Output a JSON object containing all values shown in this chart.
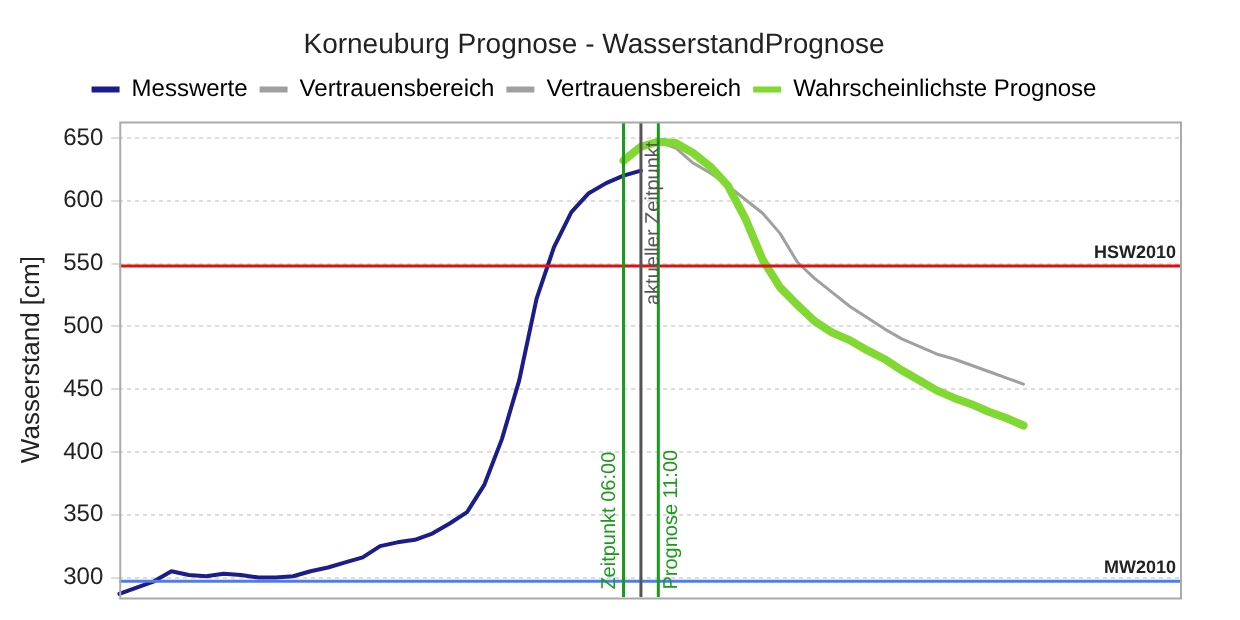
{
  "chart_data": {
    "type": "line",
    "title": "Korneuburg Prognose - WasserstandPrognose",
    "ylabel": "Wasserstand [cm]",
    "categories": [
      null,
      null,
      null,
      null,
      null,
      null,
      null,
      null,
      null,
      null,
      null,
      null,
      null,
      null,
      null,
      null,
      null,
      null,
      null,
      null,
      null,
      null,
      null,
      null,
      null,
      null,
      null,
      null,
      null,
      null,
      null,
      null,
      null,
      null,
      null,
      null,
      null,
      null,
      null,
      null,
      null,
      null,
      null,
      null,
      null,
      null,
      null,
      null,
      null,
      null,
      null,
      null,
      null,
      null,
      null,
      null,
      null,
      null,
      null,
      null,
      null,
      null
    ],
    "ylim": [
      284,
      663
    ],
    "yticks": [
      300,
      350,
      400,
      450,
      500,
      550,
      600,
      650
    ],
    "tick_labels": "y",
    "grid": "y",
    "legend": "top",
    "marker": "none",
    "line_style": "solid",
    "series": [
      {
        "name": "Messwerte",
        "color": "#1c1c8a",
        "values": [
          287,
          292,
          297,
          305,
          302,
          301,
          303,
          302,
          300,
          300,
          301,
          305,
          308,
          312,
          316,
          325,
          328,
          330,
          335,
          343,
          352,
          374,
          410,
          457,
          522,
          563,
          591,
          606,
          614,
          620,
          624,
          null,
          null,
          null,
          null,
          null,
          null,
          null,
          null,
          null,
          null,
          null,
          null,
          null,
          null,
          null,
          null,
          null,
          null,
          null,
          null,
          null,
          null,
          null,
          null,
          null,
          null,
          null,
          null,
          null,
          null,
          null
        ]
      },
      {
        "name": "Vertrauensbereich",
        "color": "#a0a0a0",
        "values": [
          null,
          null,
          null,
          null,
          null,
          null,
          null,
          null,
          null,
          null,
          null,
          null,
          null,
          null,
          null,
          null,
          null,
          null,
          null,
          null,
          null,
          null,
          null,
          null,
          null,
          null,
          null,
          null,
          null,
          null,
          643,
          647,
          642,
          630,
          622,
          612,
          601,
          590,
          574,
          551,
          538,
          527,
          516,
          507,
          498,
          490,
          484,
          478,
          474,
          469,
          464,
          459,
          454,
          null,
          null,
          null,
          null,
          null,
          null,
          null,
          null,
          null
        ]
      },
      {
        "name": "Vertrauensbereich",
        "color": "#a0a0a0",
        "values": [
          null,
          null,
          null,
          null,
          null,
          null,
          null,
          null,
          null,
          null,
          null,
          null,
          null,
          null,
          null,
          null,
          null,
          null,
          null,
          null,
          null,
          null,
          null,
          null,
          null,
          null,
          null,
          null,
          null,
          null,
          null,
          null,
          null,
          null,
          null,
          null,
          null,
          null,
          null,
          null,
          null,
          null,
          null,
          null,
          null,
          null,
          null,
          null,
          null,
          null,
          null,
          null,
          null,
          null,
          null,
          null,
          null,
          null,
          null,
          null,
          null,
          null
        ]
      },
      {
        "name": "Wahrscheinlichste Prognose",
        "color": "#80d830",
        "values": [
          null,
          null,
          null,
          null,
          null,
          null,
          null,
          null,
          null,
          null,
          null,
          null,
          null,
          null,
          null,
          null,
          null,
          null,
          null,
          null,
          null,
          null,
          null,
          null,
          null,
          null,
          null,
          null,
          null,
          632,
          643,
          647,
          646,
          638,
          627,
          612,
          586,
          553,
          531,
          517,
          504,
          495,
          489,
          481,
          474,
          465,
          457,
          449,
          443,
          438,
          432,
          427,
          421,
          null,
          null,
          null,
          null,
          null,
          null,
          null,
          null,
          null
        ]
      }
    ],
    "ref_lines": [
      {
        "axis": "y",
        "value": 548,
        "label": "HSW2010",
        "color": "#e01010"
      },
      {
        "axis": "y",
        "value": 297,
        "label": "MW2010",
        "color": "#4a7ef0"
      }
    ],
    "annotations": [
      "Zeitpunkt 06:00",
      "aktueller Zeitpunkt",
      "Prognose 11:00"
    ]
  }
}
